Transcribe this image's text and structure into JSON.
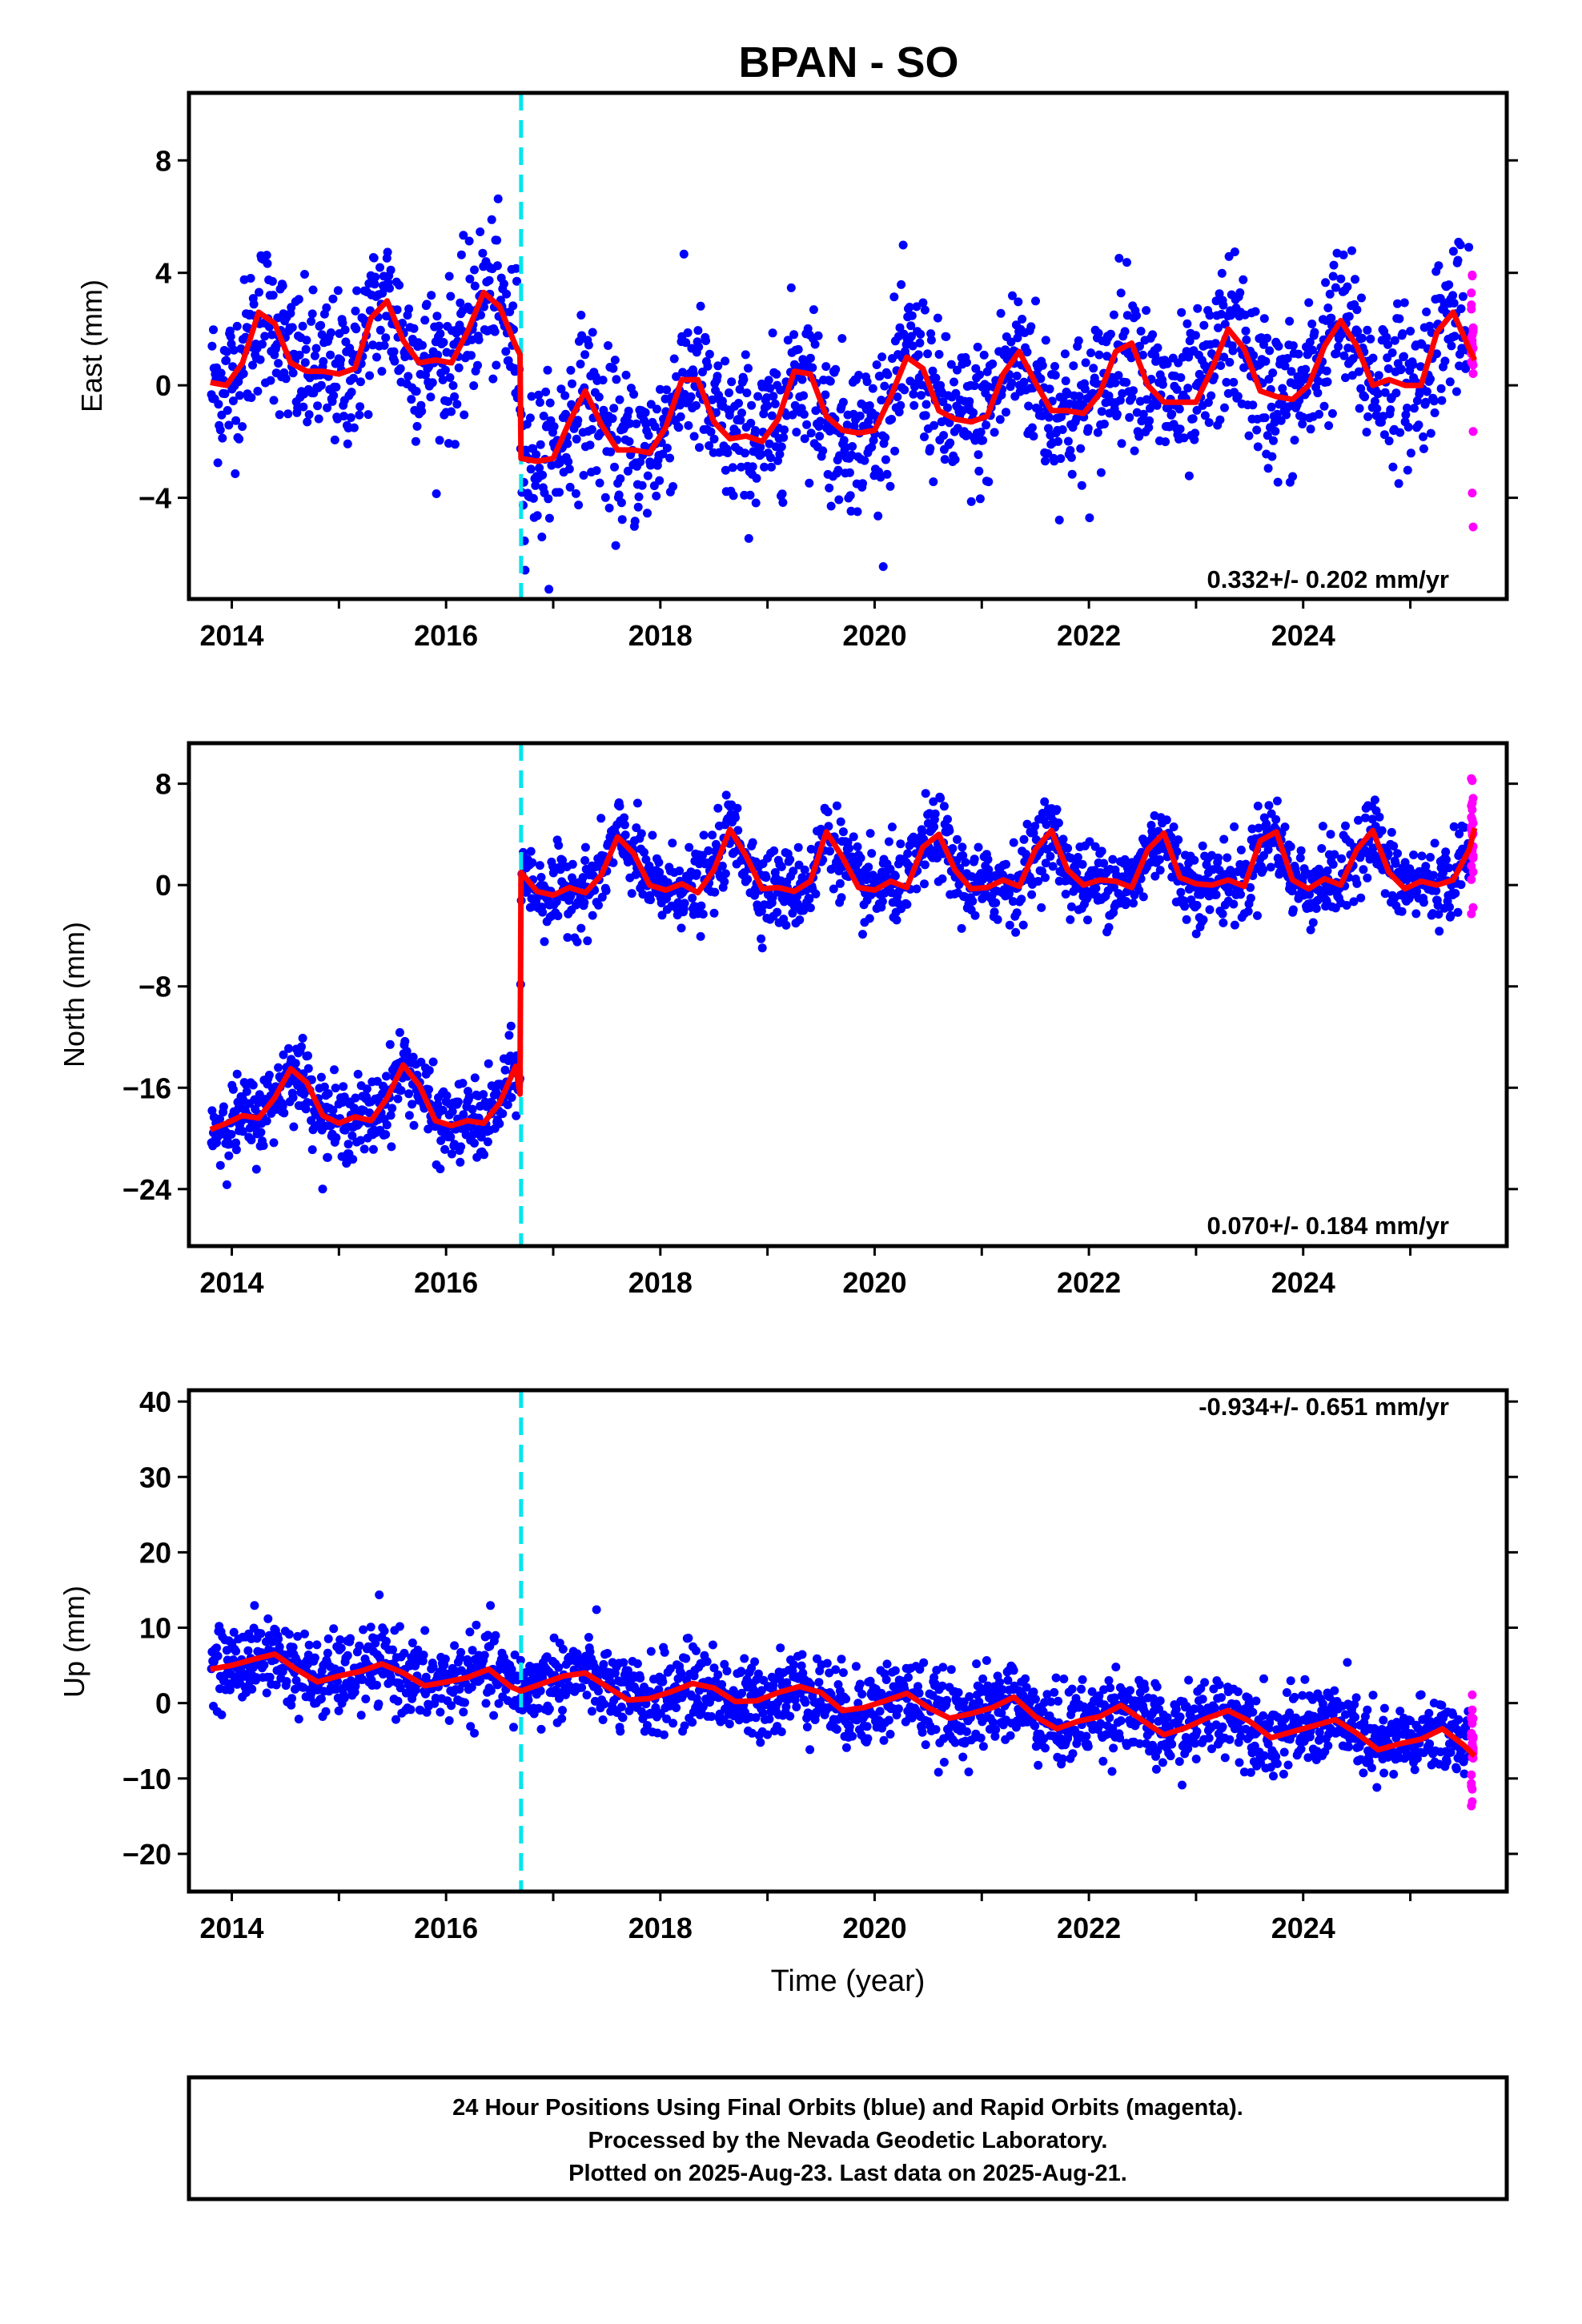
{
  "chart_data": {
    "type": "scatter",
    "title": "BPAN - SO",
    "xlabel": "Time (year)",
    "x_ticks": [
      "2014",
      "2016",
      "2018",
      "2020",
      "2022",
      "2024"
    ],
    "xlim": [
      2013.6,
      2025.9
    ],
    "offset_epoch": 2016.7,
    "colors": {
      "final_orbits": "#0000ff",
      "rapid_orbits": "#ff00ff",
      "model_fit": "#ff0000",
      "offset_line": "#00e5ee"
    },
    "panels": [
      {
        "ylabel": "East (mm)",
        "ylim": [
          -7.6,
          10.4
        ],
        "y_ticks": [
          "8",
          "4",
          "0",
          "−4"
        ],
        "y_tick_values": [
          8,
          4,
          0,
          -4
        ],
        "rate": "0.332+/- 0.202 mm/yr",
        "fit": {
          "x": [
            2013.8,
            2013.95,
            2014.1,
            2014.25,
            2014.4,
            2014.55,
            2014.7,
            2014.85,
            2015.0,
            2015.15,
            2015.3,
            2015.45,
            2015.6,
            2015.75,
            2015.9,
            2016.05,
            2016.2,
            2016.35,
            2016.5,
            2016.65,
            2016.69,
            2016.7,
            2016.85,
            2017.0,
            2017.15,
            2017.3,
            2017.45,
            2017.6,
            2017.75,
            2017.9,
            2018.05,
            2018.2,
            2018.35,
            2018.5,
            2018.65,
            2018.8,
            2018.95,
            2019.1,
            2019.25,
            2019.4,
            2019.55,
            2019.7,
            2019.85,
            2020.0,
            2020.15,
            2020.3,
            2020.45,
            2020.6,
            2020.75,
            2020.9,
            2021.05,
            2021.2,
            2021.35,
            2021.5,
            2021.65,
            2021.8,
            2021.95,
            2022.1,
            2022.25,
            2022.4,
            2022.55,
            2022.7,
            2022.85,
            2023.0,
            2023.15,
            2023.3,
            2023.45,
            2023.6,
            2023.75,
            2023.9,
            2024.05,
            2024.2,
            2024.35,
            2024.5,
            2024.65,
            2024.8,
            2024.95,
            2025.1,
            2025.25,
            2025.4,
            2025.55,
            2025.6
          ],
          "y": [
            0.1,
            0.0,
            0.8,
            2.6,
            2.2,
            0.8,
            0.5,
            0.5,
            0.4,
            0.6,
            2.4,
            3.0,
            1.6,
            0.8,
            0.9,
            0.8,
            1.9,
            3.3,
            2.8,
            1.4,
            1.1,
            -2.6,
            -2.7,
            -2.6,
            -1.3,
            -0.2,
            -1.4,
            -2.3,
            -2.3,
            -2.4,
            -1.5,
            0.2,
            0.2,
            -1.3,
            -1.9,
            -1.8,
            -2.0,
            -1.2,
            0.5,
            0.4,
            -1.1,
            -1.6,
            -1.7,
            -1.6,
            -0.4,
            1.0,
            0.6,
            -0.9,
            -1.2,
            -1.3,
            -1.1,
            0.4,
            1.2,
            0.1,
            -0.9,
            -0.9,
            -1.0,
            -0.3,
            1.2,
            1.5,
            0.0,
            -0.6,
            -0.6,
            -0.6,
            0.6,
            2.0,
            1.3,
            -0.2,
            -0.4,
            -0.5,
            0.0,
            1.4,
            2.3,
            1.4,
            0.0,
            0.2,
            0.0,
            0.0,
            1.9,
            2.6,
            1.3,
            0.9
          ]
        },
        "scatter_amp": 2.2
      },
      {
        "ylabel": "North (mm)",
        "ylim": [
          -28.5,
          11.2
        ],
        "y_ticks": [
          "8",
          "0",
          "−8",
          "−16",
          "−24"
        ],
        "y_tick_values": [
          8,
          0,
          -8,
          -16,
          -24
        ],
        "rate": "0.070+/- 0.184 mm/yr",
        "fit": {
          "x": [
            2013.8,
            2013.95,
            2014.1,
            2014.25,
            2014.4,
            2014.55,
            2014.7,
            2014.85,
            2015.0,
            2015.15,
            2015.3,
            2015.45,
            2015.6,
            2015.75,
            2015.9,
            2016.05,
            2016.2,
            2016.35,
            2016.5,
            2016.65,
            2016.69,
            2016.7,
            2016.85,
            2017.0,
            2017.15,
            2017.3,
            2017.45,
            2017.6,
            2017.75,
            2017.9,
            2018.05,
            2018.2,
            2018.35,
            2018.5,
            2018.65,
            2018.8,
            2018.95,
            2019.1,
            2019.25,
            2019.4,
            2019.55,
            2019.7,
            2019.85,
            2020.0,
            2020.15,
            2020.3,
            2020.45,
            2020.6,
            2020.75,
            2020.9,
            2021.05,
            2021.2,
            2021.35,
            2021.5,
            2021.65,
            2021.8,
            2021.95,
            2022.1,
            2022.25,
            2022.4,
            2022.55,
            2022.7,
            2022.85,
            2023.0,
            2023.15,
            2023.3,
            2023.45,
            2023.6,
            2023.75,
            2023.9,
            2024.05,
            2024.2,
            2024.35,
            2024.5,
            2024.65,
            2024.8,
            2024.95,
            2025.1,
            2025.25,
            2025.4,
            2025.55,
            2025.6
          ],
          "y": [
            -19.3,
            -18.8,
            -18.2,
            -18.4,
            -16.8,
            -14.5,
            -15.6,
            -18.2,
            -18.8,
            -18.3,
            -18.6,
            -16.8,
            -14.2,
            -15.8,
            -18.6,
            -19.0,
            -18.6,
            -18.8,
            -17.2,
            -14.3,
            -16.5,
            1.0,
            -0.5,
            -0.8,
            -0.2,
            -0.6,
            0.8,
            3.8,
            2.5,
            0.0,
            -0.4,
            0.1,
            -0.6,
            1.2,
            4.4,
            2.3,
            -0.3,
            -0.2,
            -0.5,
            0.3,
            4.2,
            2.2,
            -0.2,
            -0.4,
            0.3,
            -0.2,
            3.0,
            4.0,
            1.2,
            -0.3,
            -0.2,
            0.4,
            -0.1,
            2.8,
            4.3,
            1.2,
            0.0,
            0.4,
            0.3,
            -0.2,
            2.8,
            4.1,
            0.6,
            0.1,
            0.0,
            0.4,
            -0.1,
            3.5,
            4.2,
            0.4,
            -0.3,
            0.5,
            0.0,
            2.8,
            4.3,
            1.0,
            -0.3,
            0.3,
            0.0,
            0.4,
            2.8,
            4.5
          ]
        },
        "scatter_amp": 2.5
      },
      {
        "ylabel": "Up (mm)",
        "ylim": [
          -25,
          41.5
        ],
        "y_ticks": [
          "40",
          "30",
          "20",
          "10",
          "0",
          "−10",
          "−20"
        ],
        "y_tick_values": [
          40,
          30,
          20,
          10,
          0,
          -10,
          -20
        ],
        "rate": "-0.934+/- 0.651 mm/yr",
        "fit": {
          "x": [
            2013.8,
            2014.0,
            2014.2,
            2014.4,
            2014.6,
            2014.8,
            2015.0,
            2015.2,
            2015.4,
            2015.6,
            2015.8,
            2016.0,
            2016.2,
            2016.4,
            2016.6,
            2016.7,
            2016.9,
            2017.1,
            2017.3,
            2017.5,
            2017.7,
            2017.9,
            2018.1,
            2018.3,
            2018.5,
            2018.7,
            2018.9,
            2019.1,
            2019.3,
            2019.5,
            2019.7,
            2019.9,
            2020.1,
            2020.3,
            2020.5,
            2020.7,
            2020.9,
            2021.1,
            2021.3,
            2021.5,
            2021.7,
            2021.9,
            2022.1,
            2022.3,
            2022.5,
            2022.7,
            2022.9,
            2023.1,
            2023.3,
            2023.5,
            2023.7,
            2023.9,
            2024.1,
            2024.3,
            2024.5,
            2024.7,
            2024.9,
            2025.1,
            2025.3,
            2025.5,
            2025.6
          ],
          "y": [
            4.5,
            5.0,
            5.8,
            6.5,
            4.5,
            2.8,
            3.6,
            4.2,
            5.2,
            4.0,
            2.3,
            2.8,
            3.4,
            4.5,
            2.2,
            1.6,
            2.6,
            3.6,
            4.0,
            2.2,
            0.4,
            0.6,
            1.5,
            2.6,
            2.0,
            0.2,
            0.3,
            1.4,
            2.2,
            1.4,
            -1.0,
            -0.6,
            0.3,
            1.3,
            -0.6,
            -2.0,
            -1.4,
            -0.6,
            0.8,
            -1.8,
            -3.4,
            -2.4,
            -1.8,
            -0.3,
            -2.3,
            -4.2,
            -3.3,
            -2.0,
            -1.0,
            -2.4,
            -4.6,
            -3.8,
            -3.0,
            -2.2,
            -4.0,
            -6.2,
            -5.4,
            -4.8,
            -3.4,
            -5.6,
            -7.0
          ]
        },
        "scatter_amp": 4.2
      }
    ],
    "notes": [
      "24 Hour Positions Using Final Orbits (blue) and Rapid Orbits (magenta).",
      "Processed by the Nevada Geodetic Laboratory.",
      "Plotted on 2025-Aug-23. Last data on 2025-Aug-21."
    ]
  }
}
